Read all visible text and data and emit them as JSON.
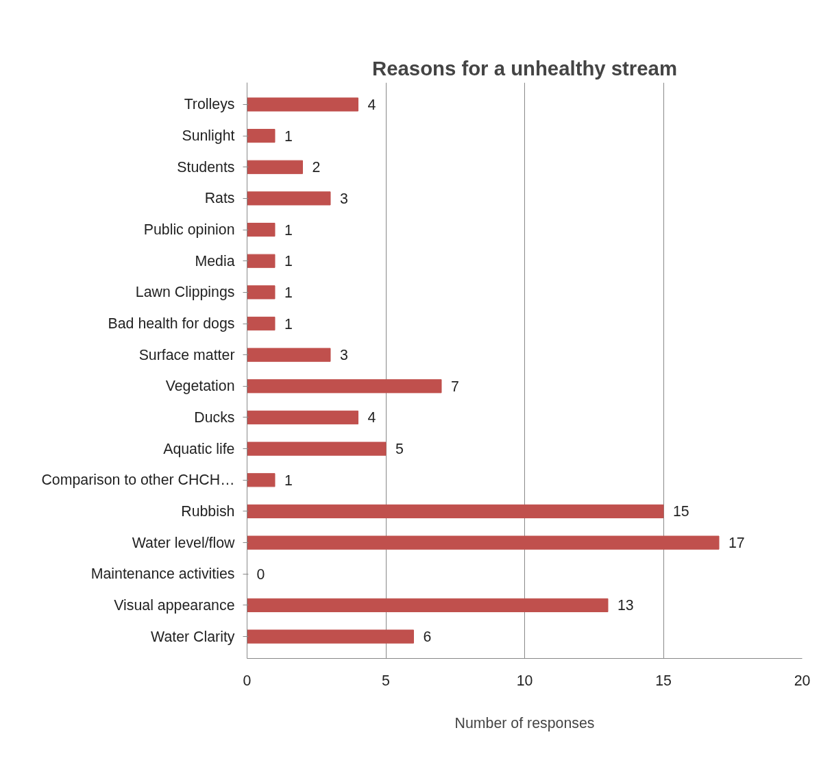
{
  "chart_data": {
    "type": "bar",
    "orientation": "horizontal",
    "title": "Reasons for a unhealthy stream",
    "xlabel": "Number of responses",
    "categories": [
      "Trolleys",
      "Sunlight",
      "Students",
      "Rats",
      "Public opinion",
      "Media",
      "Lawn Clippings",
      "Bad health for dogs",
      "Surface matter",
      "Vegetation",
      "Ducks",
      "Aquatic life",
      "Comparison to other CHCH…",
      "Rubbish",
      "Water level/flow",
      "Maintenance activities",
      "Visual appearance",
      "Water Clarity"
    ],
    "values": [
      4,
      1,
      2,
      3,
      1,
      1,
      1,
      1,
      3,
      7,
      4,
      5,
      1,
      15,
      17,
      0,
      13,
      6
    ],
    "color": "#c0504d",
    "xlim": [
      0,
      20
    ],
    "xticks": [
      0,
      5,
      10,
      15,
      20
    ],
    "grid": "x",
    "data_labels": true
  }
}
